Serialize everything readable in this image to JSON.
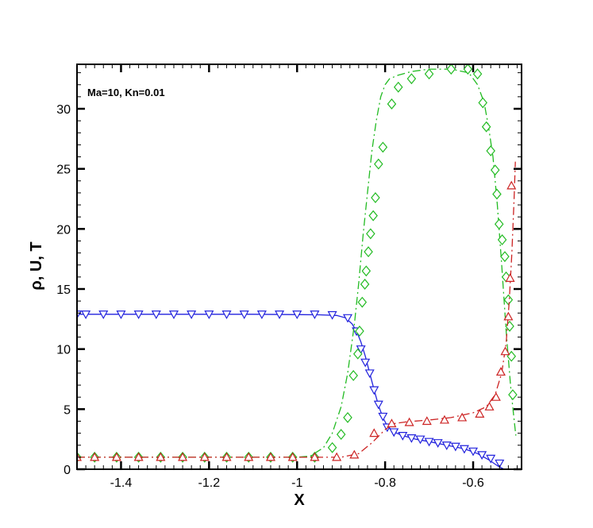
{
  "chart_data": {
    "type": "line",
    "title": "",
    "annotation": "Ma=10, Kn=0.01",
    "xlabel": "X",
    "ylabel": "ρ, U, T",
    "xlim": [
      -1.5,
      -0.49
    ],
    "ylim": [
      0,
      33.7
    ],
    "grid": false,
    "legend": "none",
    "x_ticks": [
      -1.4,
      -1.2,
      -1,
      -0.8,
      -0.6
    ],
    "x_tick_labels": [
      "-1.4",
      "-1.2",
      "-1",
      "-0.8",
      "-0.6"
    ],
    "y_ticks": [
      0,
      5,
      10,
      15,
      20,
      25,
      30
    ],
    "y_tick_labels": [
      "0",
      "5",
      "10",
      "15",
      "20",
      "25",
      "30"
    ],
    "series": [
      {
        "color": "#2222dd",
        "line_style": "solid",
        "marker": "triangle-down",
        "line_x": [
          -1.5,
          -1.3,
          -1.1,
          -0.95,
          -0.91,
          -0.89,
          -0.875,
          -0.865,
          -0.855,
          -0.845,
          -0.835,
          -0.825,
          -0.815,
          -0.805,
          -0.795,
          -0.78,
          -0.76,
          -0.73,
          -0.7,
          -0.66,
          -0.62,
          -0.59,
          -0.565,
          -0.545,
          -0.53
        ],
        "line_y": [
          12.9,
          12.9,
          12.9,
          12.85,
          12.8,
          12.6,
          12.1,
          11.5,
          10.6,
          9.4,
          8.0,
          6.6,
          5.3,
          4.3,
          3.6,
          3.1,
          2.8,
          2.5,
          2.3,
          2.0,
          1.7,
          1.3,
          0.8,
          0.3,
          0.0
        ],
        "marker_x": [
          -1.5,
          -1.48,
          -1.44,
          -1.4,
          -1.36,
          -1.32,
          -1.28,
          -1.24,
          -1.2,
          -1.16,
          -1.12,
          -1.08,
          -1.04,
          -1.0,
          -0.96,
          -0.92,
          -0.885,
          -0.865,
          -0.855,
          -0.845,
          -0.835,
          -0.825,
          -0.815,
          -0.805,
          -0.795,
          -0.78,
          -0.76,
          -0.74,
          -0.72,
          -0.7,
          -0.68,
          -0.66,
          -0.64,
          -0.62,
          -0.6,
          -0.58,
          -0.56,
          -0.54
        ],
        "marker_y": [
          12.9,
          12.9,
          12.9,
          12.9,
          12.9,
          12.9,
          12.9,
          12.9,
          12.9,
          12.9,
          12.9,
          12.9,
          12.9,
          12.9,
          12.9,
          12.85,
          12.6,
          11.5,
          10.0,
          8.9,
          8.0,
          6.6,
          5.4,
          4.4,
          3.5,
          3.1,
          2.8,
          2.6,
          2.5,
          2.3,
          2.2,
          2.0,
          1.9,
          1.7,
          1.5,
          1.2,
          0.9,
          0.5
        ]
      },
      {
        "color": "#22bb22",
        "line_style": "dashdot",
        "marker": "diamond",
        "line_x": [
          -1.5,
          -1.2,
          -1.0,
          -0.97,
          -0.94,
          -0.92,
          -0.9,
          -0.885,
          -0.87,
          -0.86,
          -0.85,
          -0.84,
          -0.83,
          -0.82,
          -0.81,
          -0.8,
          -0.79,
          -0.77,
          -0.74,
          -0.7,
          -0.65,
          -0.61,
          -0.59,
          -0.575,
          -0.565,
          -0.555,
          -0.545,
          -0.535,
          -0.525,
          -0.515,
          -0.508,
          -0.503
        ],
        "line_y": [
          1.0,
          1.0,
          1.0,
          1.1,
          1.8,
          3.0,
          5.2,
          8.0,
          12.0,
          15.5,
          19.5,
          23.0,
          26.5,
          29.0,
          31.0,
          32.0,
          32.5,
          32.8,
          33.1,
          33.3,
          33.3,
          33.0,
          32.0,
          30.5,
          28.5,
          26.0,
          22.0,
          17.0,
          11.5,
          7.0,
          4.5,
          2.8
        ],
        "marker_x": [
          -1.5,
          -1.46,
          -1.41,
          -1.36,
          -1.31,
          -1.26,
          -1.21,
          -1.16,
          -1.11,
          -1.06,
          -1.01,
          -0.96,
          -0.92,
          -0.9,
          -0.885,
          -0.872,
          -0.862,
          -0.858,
          -0.852,
          -0.846,
          -0.843,
          -0.838,
          -0.833,
          -0.827,
          -0.822,
          -0.815,
          -0.805,
          -0.785,
          -0.77,
          -0.74,
          -0.7,
          -0.65,
          -0.612,
          -0.59,
          -0.578,
          -0.57,
          -0.56,
          -0.55,
          -0.546,
          -0.541,
          -0.534,
          -0.528,
          -0.525,
          -0.52,
          -0.517,
          -0.513,
          -0.51
        ],
        "marker_y": [
          1.0,
          1.0,
          1.0,
          1.0,
          1.0,
          1.0,
          1.0,
          1.0,
          1.0,
          1.0,
          1.0,
          1.0,
          1.8,
          2.9,
          4.3,
          7.8,
          9.6,
          11.5,
          13.9,
          15.4,
          16.5,
          18.1,
          19.6,
          21.1,
          22.6,
          25.4,
          26.8,
          30.4,
          31.8,
          32.5,
          32.9,
          33.3,
          33.3,
          32.9,
          30.5,
          28.5,
          26.5,
          24.9,
          22.9,
          20.4,
          19.1,
          17.7,
          16.0,
          14.1,
          11.9,
          9.4,
          6.2
        ]
      },
      {
        "color": "#cc2222",
        "line_style": "dashdot",
        "marker": "triangle-up",
        "line_x": [
          -1.5,
          -1.2,
          -1.0,
          -0.9,
          -0.86,
          -0.83,
          -0.8,
          -0.78,
          -0.75,
          -0.7,
          -0.65,
          -0.6,
          -0.57,
          -0.55,
          -0.535,
          -0.525,
          -0.518,
          -0.512,
          -0.507,
          -0.504
        ],
        "line_y": [
          1.0,
          1.0,
          1.0,
          1.0,
          1.3,
          2.2,
          3.3,
          3.8,
          3.95,
          4.1,
          4.3,
          4.7,
          5.2,
          6.2,
          8.0,
          10.5,
          14.0,
          18.0,
          22.5,
          25.6
        ],
        "marker_x": [
          -1.5,
          -1.46,
          -1.41,
          -1.36,
          -1.31,
          -1.26,
          -1.21,
          -1.16,
          -1.11,
          -1.06,
          -1.01,
          -0.96,
          -0.91,
          -0.87,
          -0.825,
          -0.785,
          -0.745,
          -0.705,
          -0.665,
          -0.625,
          -0.585,
          -0.563,
          -0.548,
          -0.537,
          -0.527,
          -0.52,
          -0.516,
          -0.513
        ],
        "marker_y": [
          1.0,
          1.0,
          1.0,
          1.0,
          1.0,
          1.0,
          1.0,
          1.0,
          1.0,
          1.0,
          1.0,
          1.0,
          1.0,
          1.2,
          3.0,
          3.8,
          3.9,
          4.0,
          4.1,
          4.3,
          4.6,
          5.2,
          6.0,
          8.1,
          9.8,
          12.7,
          15.9,
          23.6
        ]
      }
    ]
  }
}
